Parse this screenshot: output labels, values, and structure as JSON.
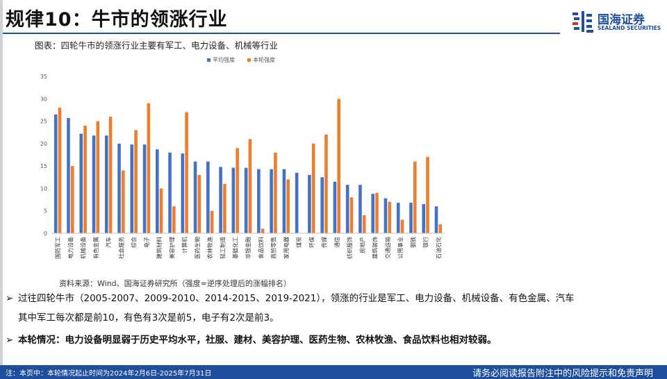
{
  "header": {
    "title": "规律10：牛市的领涨行业",
    "logo_cn": "国海证券",
    "logo_en": "SEALAND SECURITIES",
    "brand_color": "#1f4e9c"
  },
  "caption": "图表：四轮牛市的领涨行业主要有军工、电力设备、机械等行业",
  "chart_data": {
    "type": "bar",
    "title": "",
    "xlabel": "",
    "ylabel": "",
    "ylim": [
      0,
      35
    ],
    "yticks": [
      0,
      5,
      10,
      15,
      20,
      25,
      30,
      35
    ],
    "grid": false,
    "legend_position": "top-center",
    "categories": [
      "国防军工",
      "电力设备",
      "机械设备",
      "有色金属",
      "汽车",
      "社会服务",
      "综合",
      "电子",
      "建筑材料",
      "美容护理",
      "计算机",
      "医药生物",
      "农林牧渔",
      "轻工制造",
      "基础化工",
      "非银金融",
      "食品饮料",
      "商贸零售",
      "家用电器",
      "煤炭",
      "环保",
      "传媒",
      "通信",
      "纺织服饰",
      "房地产",
      "建筑装饰",
      "交通运输",
      "公用事业",
      "钢铁",
      "银行",
      "石油石化"
    ],
    "series": [
      {
        "name": "平均强度",
        "color": "#4472c4",
        "values": [
          26.5,
          25.7,
          22.2,
          21.8,
          21.8,
          20.0,
          19.8,
          19.8,
          18.7,
          18.0,
          17.8,
          16.0,
          16.0,
          14.8,
          14.6,
          14.6,
          14.3,
          14.3,
          14.3,
          13.5,
          13.0,
          12.5,
          11.5,
          10.8,
          10.8,
          8.8,
          7.8,
          6.8,
          6.8,
          6.5,
          6.0
        ]
      },
      {
        "name": "本轮强度",
        "color": "#ed7d31",
        "values": [
          28.0,
          15.0,
          24.0,
          25.0,
          26.0,
          14.0,
          23.0,
          29.0,
          10.0,
          6.0,
          27.0,
          13.0,
          5.0,
          11.0,
          19.0,
          21.0,
          1.0,
          18.0,
          12.0,
          0,
          20.0,
          22.0,
          30.0,
          8.0,
          4.0,
          9.0,
          7.0,
          3.0,
          16.0,
          17.0,
          2.0
        ]
      }
    ]
  },
  "source": "资料来源：Wind、国海证券研究所（强度=逆序处理后的涨幅排名）",
  "bullets": {
    "b1_marker": "➢",
    "b1_line1": "过往四轮牛市（2005-2007、2009-2010、2014-2015、2019-2021），领涨的行业是军工、电力设备、机械设备、有色金属、汽车",
    "b1_line2": "其中军工每次都是前10，有色有3次是前5，电子有2次是前3。",
    "b2_marker": "➢",
    "b2_text": "本轮情况：电力设备明显弱于历史平均水平，社服、建材、美容护理、医药生物、农林牧渔、食品饮料也相对较弱。"
  },
  "footer": {
    "left": "注：本页中：本轮情况起止时间为2024年2月6日-2025年7月31日",
    "right": "请务必阅读报告附注中的风险提示和免责声明"
  }
}
